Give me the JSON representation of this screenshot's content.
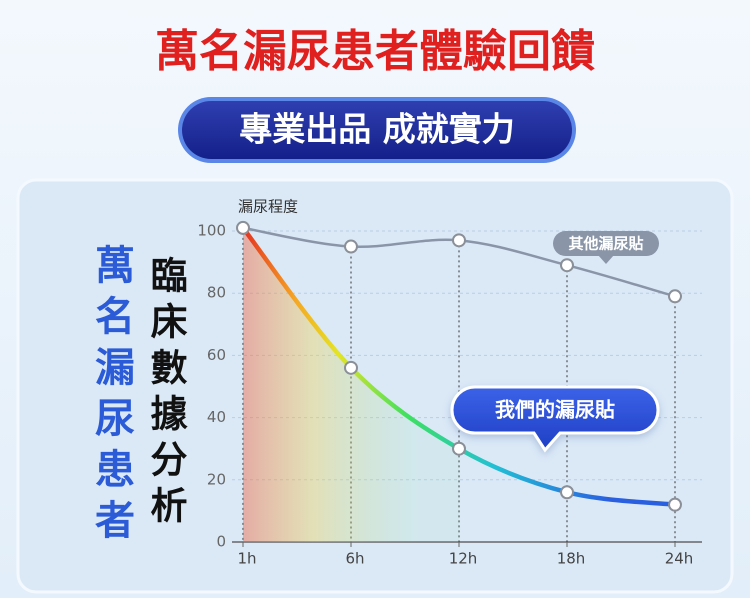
{
  "title": "萬名漏尿患者體驗回饋",
  "subtitle": "專業出品 成就實力",
  "side_labels": [
    "萬名漏尿患者",
    "臨床數據分析"
  ],
  "chart_data": {
    "type": "line",
    "y_label": "漏尿程度",
    "categories": [
      "1h",
      "6h",
      "12h",
      "18h",
      "24h"
    ],
    "series": [
      {
        "name": "其他漏尿貼",
        "color": "#8a96a8",
        "values": [
          101,
          95,
          97,
          89,
          79
        ]
      },
      {
        "name": "我們的漏尿貼",
        "color": "#2a5fe0",
        "values": [
          101,
          56,
          30,
          16,
          12
        ]
      }
    ],
    "ylim": [
      0,
      105
    ],
    "yticks": [
      0,
      20,
      40,
      60,
      80,
      100
    ],
    "grid": true
  }
}
